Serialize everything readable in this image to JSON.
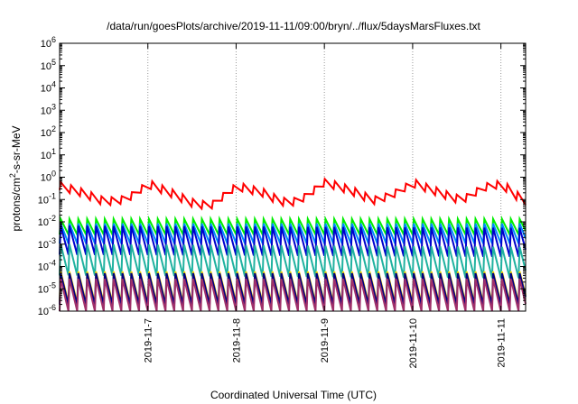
{
  "chart_data": {
    "type": "line",
    "title": "/data/run/goesPlots/archive/2019-11-11/09:00/bryn/../flux/5daysMarsFluxes.txt",
    "xlabel": "Coordinated Universal Time (UTC)",
    "ylabel": {
      "base": "protons/cm",
      "sup": "2",
      "rest": "-s-sr-MeV"
    },
    "y_scale": "log",
    "ylim": [
      1e-06,
      1000000.0
    ],
    "y_ticks": [
      {
        "value": 1e-06,
        "exp": "-6"
      },
      {
        "value": 1e-05,
        "exp": "-5"
      },
      {
        "value": 0.0001,
        "exp": "-4"
      },
      {
        "value": 0.001,
        "exp": "-3"
      },
      {
        "value": 0.01,
        "exp": "-2"
      },
      {
        "value": 0.1,
        "exp": "-1"
      },
      {
        "value": 1.0,
        "exp": "0"
      },
      {
        "value": 10.0,
        "exp": "1"
      },
      {
        "value": 100.0,
        "exp": "2"
      },
      {
        "value": 1000.0,
        "exp": "3"
      },
      {
        "value": 10000.0,
        "exp": "4"
      },
      {
        "value": 100000.0,
        "exp": "5"
      },
      {
        "value": 1000000.0,
        "exp": "6"
      }
    ],
    "y_tick_base": "10",
    "xlim": [
      0,
      5.28
    ],
    "x_ticks": [
      {
        "value": 1.0,
        "label": "2019-11-7"
      },
      {
        "value": 2.0,
        "label": "2019-11-8"
      },
      {
        "value": 3.0,
        "label": "2019-11-9"
      },
      {
        "value": 4.0,
        "label": "2019-11-10"
      },
      {
        "value": 5.0,
        "label": "2019-11-11"
      }
    ],
    "grid": true,
    "series": [
      {
        "color": "#ff0000",
        "amp": 6,
        "period": 0.115,
        "base": 0.35,
        "drift": [
          [
            0,
            0.4
          ],
          [
            0.25,
            0.2
          ],
          [
            0.5,
            0.08
          ],
          [
            0.75,
            0.1
          ],
          [
            1.0,
            0.5
          ],
          [
            1.25,
            0.2
          ],
          [
            1.5,
            0.07
          ],
          [
            1.7,
            0.05
          ],
          [
            2.0,
            0.4
          ],
          [
            2.3,
            0.2
          ],
          [
            2.5,
            0.08
          ],
          [
            2.7,
            0.08
          ],
          [
            3.0,
            0.6
          ],
          [
            3.3,
            0.25
          ],
          [
            3.55,
            0.09
          ],
          [
            3.75,
            0.15
          ],
          [
            4.0,
            0.55
          ],
          [
            4.3,
            0.2
          ],
          [
            4.55,
            0.09
          ],
          [
            4.8,
            0.35
          ],
          [
            5.0,
            0.5
          ],
          [
            5.28,
            0.07
          ]
        ],
        "tooth": 0.35
      },
      {
        "color": "#00ee00",
        "period": 0.1,
        "drift": [
          [
            0,
            0.006
          ],
          [
            5.28,
            0.006
          ]
        ],
        "tooth": 0.7
      },
      {
        "color": "#0088ff",
        "period": 0.1,
        "drift": [
          [
            0,
            0.003
          ],
          [
            5.28,
            0.003
          ]
        ],
        "tooth": 0.9
      },
      {
        "color": "#0000cc",
        "period": 0.1,
        "drift": [
          [
            0,
            0.0015
          ],
          [
            5.28,
            0.0012
          ]
        ],
        "tooth": 1.3
      },
      {
        "color": "#20b2a0",
        "period": 0.1,
        "drift": [
          [
            0,
            0.0002
          ],
          [
            5.28,
            0.00015
          ]
        ],
        "tooth": 1.4
      },
      {
        "color": "#ffdd00",
        "period": 0.1,
        "drift": [
          [
            0,
            1.2e-05
          ],
          [
            5.28,
            1.2e-05
          ]
        ],
        "tooth": 1.4
      },
      {
        "color": "#000080",
        "period": 0.1,
        "drift": [
          [
            0,
            1e-05
          ],
          [
            5.28,
            1e-05
          ]
        ],
        "tooth": 1.4
      },
      {
        "color": "#a0306a",
        "period": 0.1,
        "drift": [
          [
            0,
            5e-06
          ],
          [
            5.28,
            5e-06
          ]
        ],
        "tooth": 1.5
      }
    ]
  }
}
